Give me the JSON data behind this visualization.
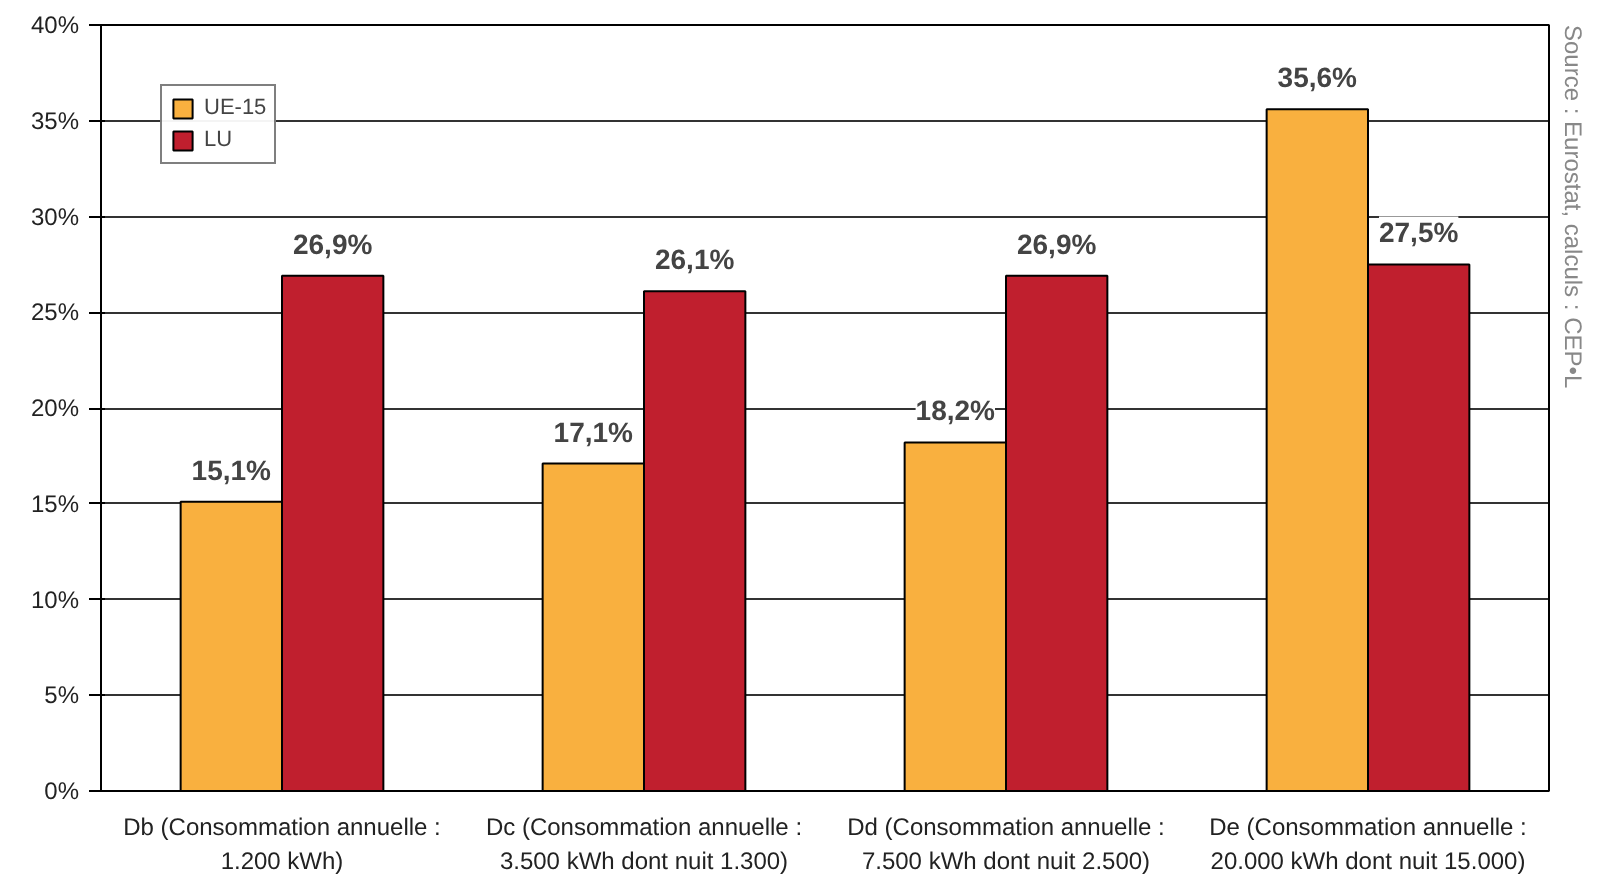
{
  "chart_data": {
    "type": "bar",
    "categories": [
      "Db (Consommation annuelle :\n1.200 kWh)",
      "Dc (Consommation annuelle :\n3.500 kWh dont nuit 1.300)",
      "Dd (Consommation annuelle :\n7.500 kWh dont nuit 2.500)",
      "De (Consommation annuelle :\n20.000 kWh dont nuit 15.000)"
    ],
    "series": [
      {
        "name": "UE-15",
        "color": "#f9b03f",
        "values": [
          15.1,
          17.1,
          18.2,
          35.6
        ],
        "value_labels": [
          "15,1%",
          "17,1%",
          "18,2%",
          "35,6%"
        ]
      },
      {
        "name": "LU",
        "color": "#c01f2e",
        "values": [
          26.9,
          26.1,
          26.9,
          27.5
        ],
        "value_labels": [
          "26,9%",
          "26,1%",
          "26,9%",
          "27,5%"
        ]
      }
    ],
    "ylim": [
      0,
      40
    ],
    "yticks": [
      {
        "value": 0,
        "label": "0%"
      },
      {
        "value": 5,
        "label": "5%"
      },
      {
        "value": 10,
        "label": "10%"
      },
      {
        "value": 15,
        "label": "15%"
      },
      {
        "value": 20,
        "label": "20%"
      },
      {
        "value": 25,
        "label": "25%"
      },
      {
        "value": 30,
        "label": "30%"
      },
      {
        "value": 35,
        "label": "35%"
      },
      {
        "value": 40,
        "label": "40%"
      }
    ],
    "grid": "y",
    "legend": "top left",
    "annotations": [
      "Source : Eurostat, calculs : CEP•L"
    ]
  }
}
